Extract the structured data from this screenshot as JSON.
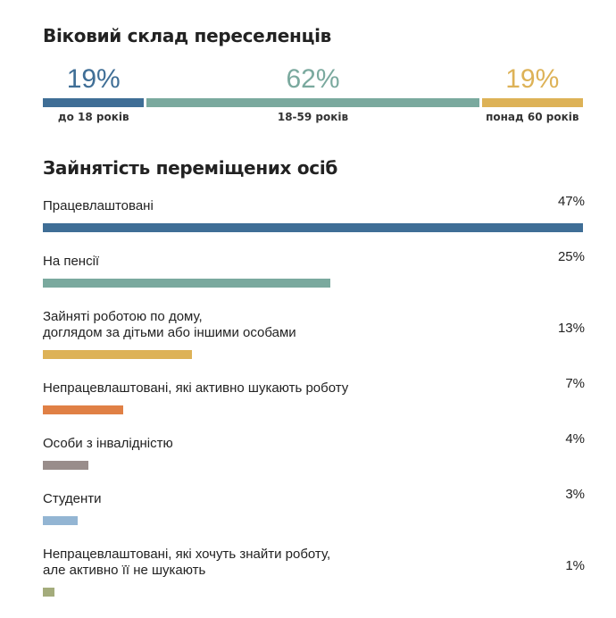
{
  "chart_data": [
    {
      "type": "bar",
      "title": "Віковий склад переселенців",
      "categories": [
        "до 18 років",
        "18-59 років",
        "понад 60 років"
      ],
      "values": [
        19,
        62,
        19
      ],
      "value_labels": [
        "19%",
        "62%",
        "19%"
      ],
      "colors": [
        "#3f6e96",
        "#7aa99e",
        "#ddb257"
      ],
      "orientation": "stacked-horizontal"
    },
    {
      "type": "bar",
      "title": "Зайнятість переміщених осіб",
      "orientation": "horizontal",
      "categories": [
        "Працевлаштовані",
        "На пенсії",
        "Зайняті роботою по дому,\nдоглядом за дітьми або іншими особами",
        "Непрацевлаштовані, які активно шукають роботу",
        "Особи з інвалідністю",
        "Студенти",
        "Непрацевлаштовані, які хочуть знайти роботу,\nале активно її не шукають"
      ],
      "values": [
        47,
        25,
        13,
        7,
        4,
        3,
        1
      ],
      "value_labels": [
        "47%",
        "25%",
        "13%",
        "7%",
        "4%",
        "3%",
        "1%"
      ],
      "colors": [
        "#3f6e96",
        "#7aa99e",
        "#ddb257",
        "#e08045",
        "#998d8b",
        "#93b5d3",
        "#a4ac7c"
      ],
      "xlim": [
        0,
        47
      ],
      "grid": false
    }
  ]
}
